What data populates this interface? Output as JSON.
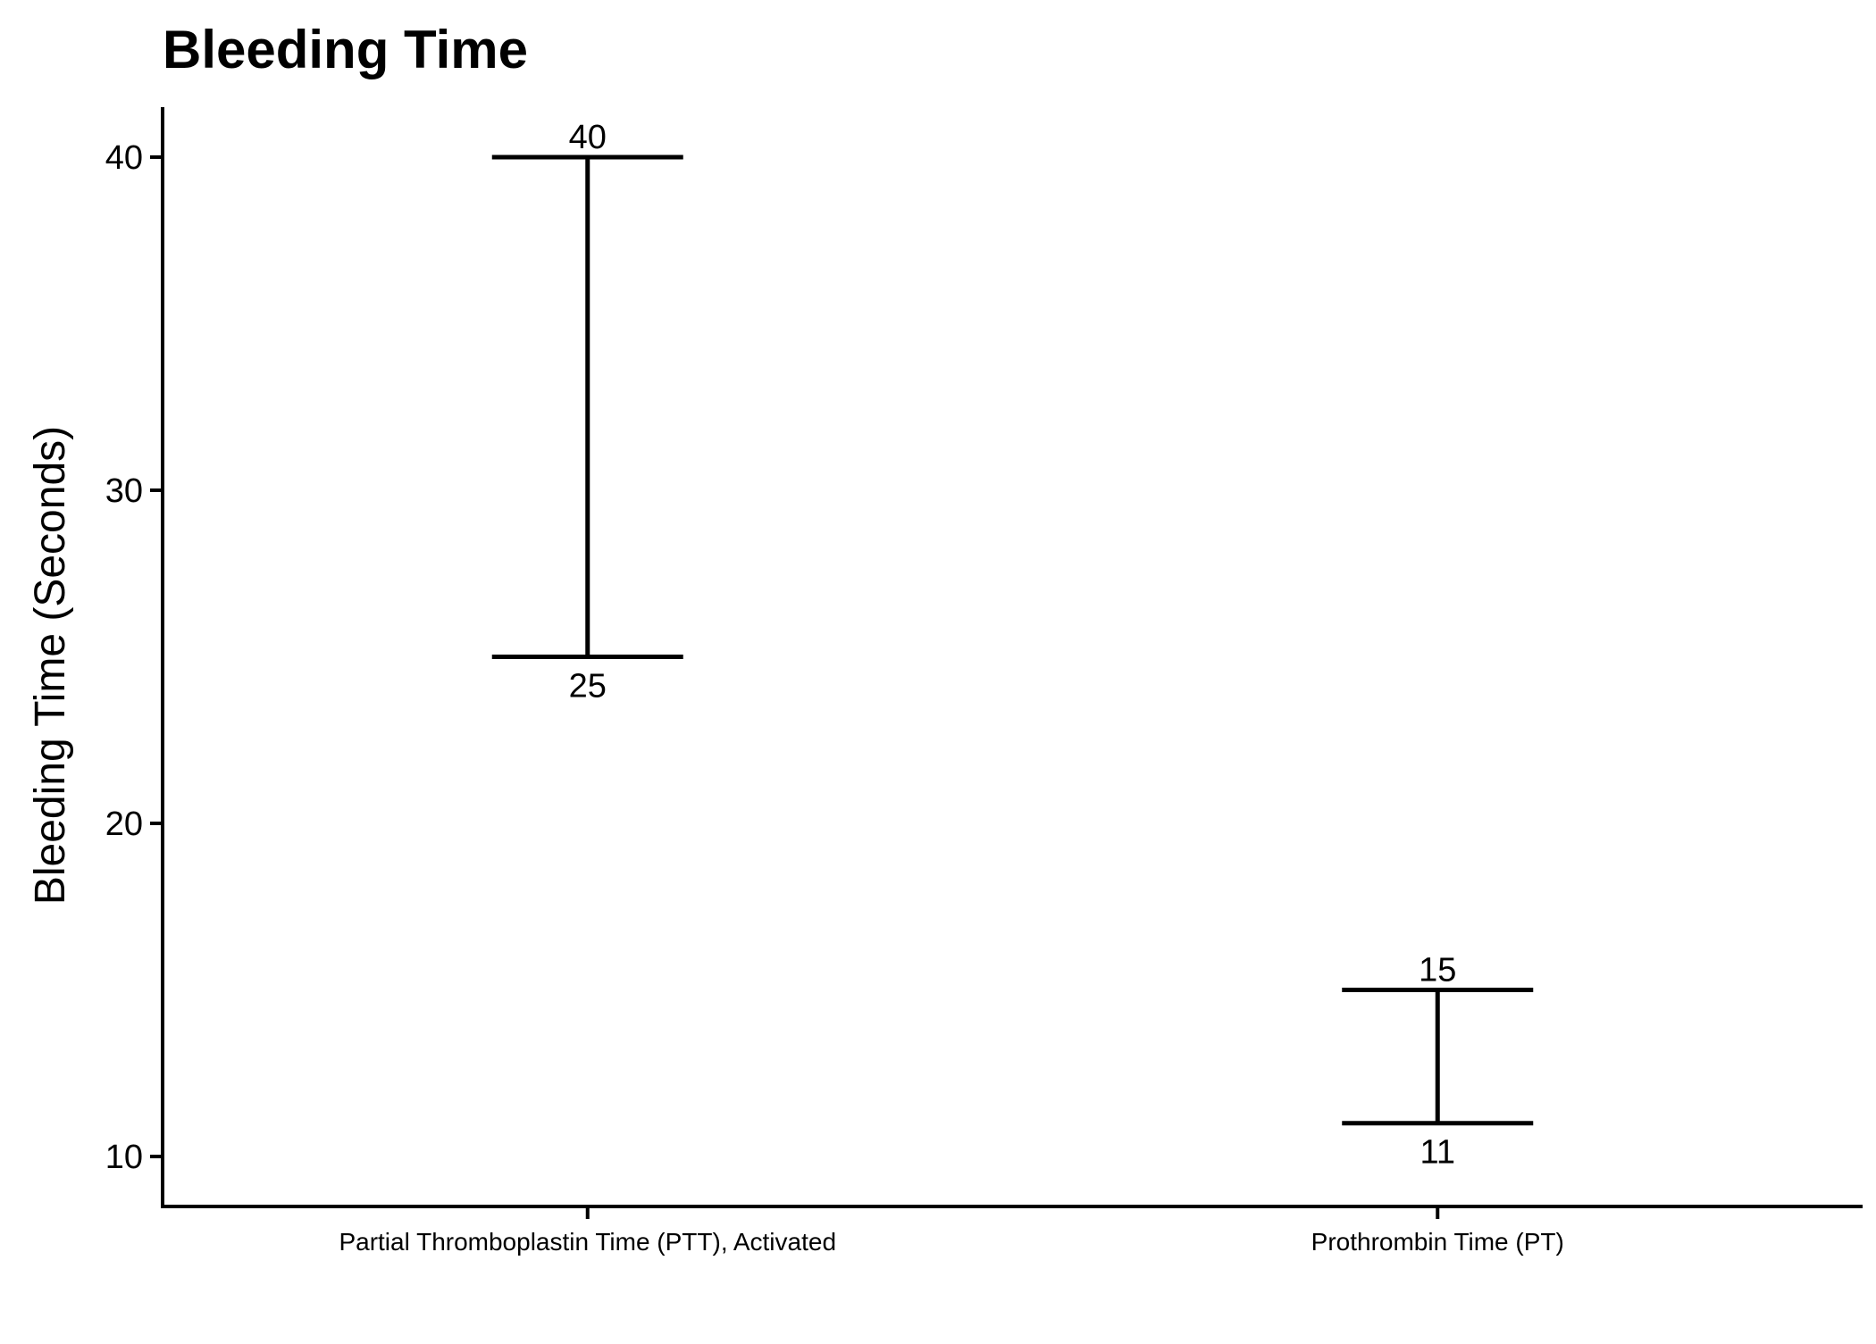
{
  "chart_data": {
    "type": "errorbar",
    "title": "Bleeding Time",
    "xlabel": "",
    "ylabel": "Bleeding Time (Seconds)",
    "ylim": [
      8.5,
      41.5
    ],
    "yticks": [
      10,
      20,
      30,
      40
    ],
    "grid": false,
    "categories": [
      "Partial Thromboplastin Time (PTT), Activated",
      "Prothrombin Time (PT)"
    ],
    "ranges": [
      {
        "category": "Partial Thromboplastin Time (PTT), Activated",
        "low": 25,
        "high": 40,
        "low_label": "25",
        "high_label": "40"
      },
      {
        "category": "Prothrombin Time (PT)",
        "low": 11,
        "high": 15,
        "low_label": "11",
        "high_label": "15"
      }
    ],
    "color": "#000000"
  }
}
